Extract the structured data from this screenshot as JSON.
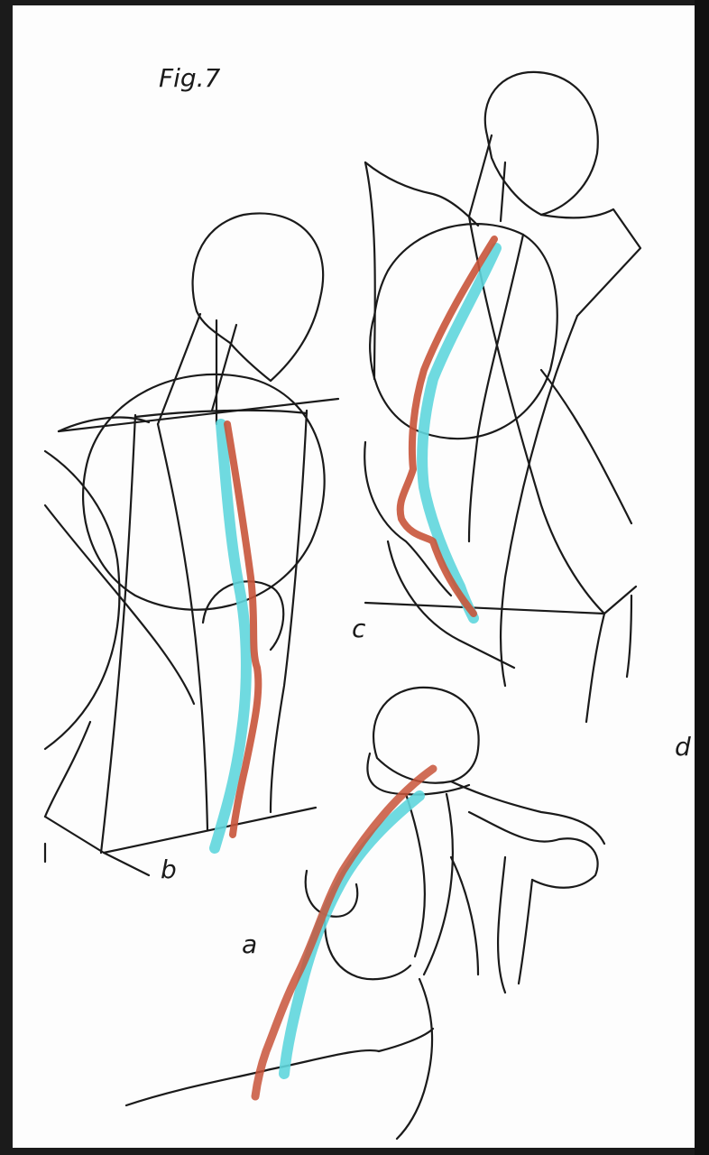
{
  "figure": {
    "title": "Fig.7",
    "labels": {
      "a": "a",
      "b": "b",
      "c": "c",
      "d": "d"
    }
  },
  "colors": {
    "paper": "#fdfdfd",
    "ink": "#1a1a1a",
    "spine_red": "#c8543a",
    "spine_cyan": "#5fd6dd",
    "border": "#1b1b1b"
  }
}
